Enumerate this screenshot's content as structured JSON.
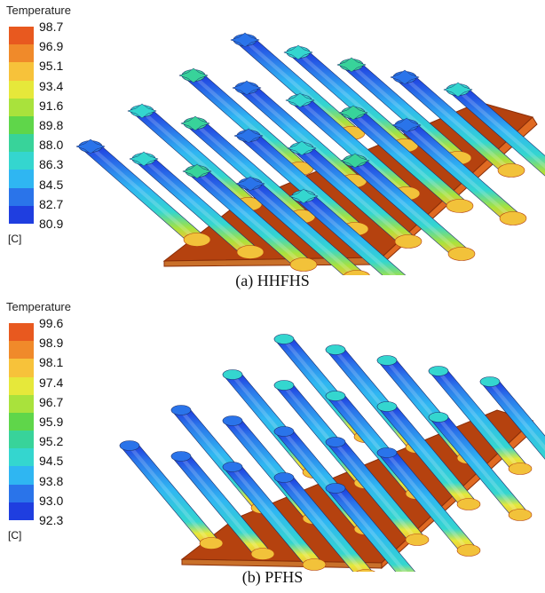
{
  "panels": [
    {
      "id": "a",
      "legend_title": "Temperature",
      "ticks": [
        "98.7",
        "96.9",
        "95.1",
        "93.4",
        "91.6",
        "89.8",
        "88.0",
        "86.3",
        "84.5",
        "82.7",
        "80.9"
      ],
      "unit": "[C]",
      "caption": "(a)  HHFHS",
      "colors": [
        "#e8591f",
        "#f08a2a",
        "#f7c23a",
        "#e6e83a",
        "#a9e23c",
        "#5fd64a",
        "#38d39a",
        "#34d6cf",
        "#2fb6f2",
        "#2a74ea",
        "#1f3ee0"
      ]
    },
    {
      "id": "b",
      "legend_title": "Temperature",
      "ticks": [
        "99.6",
        "98.9",
        "98.1",
        "97.4",
        "96.7",
        "95.9",
        "95.2",
        "94.5",
        "93.8",
        "93.0",
        "92.3"
      ],
      "unit": "[C]",
      "caption": "(b)  PFHS",
      "colors": [
        "#e8591f",
        "#f08a2a",
        "#f7c23a",
        "#e6e83a",
        "#a9e23c",
        "#5fd64a",
        "#38d39a",
        "#34d6cf",
        "#2fb6f2",
        "#2a74ea",
        "#1f3ee0"
      ]
    }
  ]
}
